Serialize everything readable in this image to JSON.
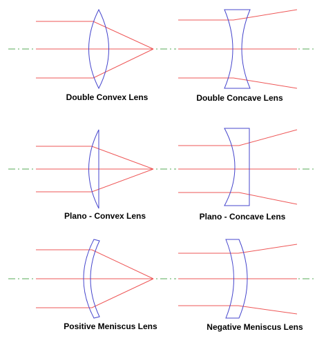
{
  "colors": {
    "ray": "#ee5555",
    "lens": "#4444cc",
    "axis": "#55aa55",
    "text": "#000000"
  },
  "lenses": [
    {
      "name": "double-convex",
      "label": "Double Convex Lens"
    },
    {
      "name": "double-concave",
      "label": "Double Concave Lens"
    },
    {
      "name": "plano-convex",
      "label": "Plano - Convex Lens"
    },
    {
      "name": "plano-concave",
      "label": "Plano - Concave Lens"
    },
    {
      "name": "positive-meniscus",
      "label": "Positive Meniscus Lens"
    },
    {
      "name": "negative-meniscus",
      "label": "Negative Meniscus Lens"
    }
  ]
}
